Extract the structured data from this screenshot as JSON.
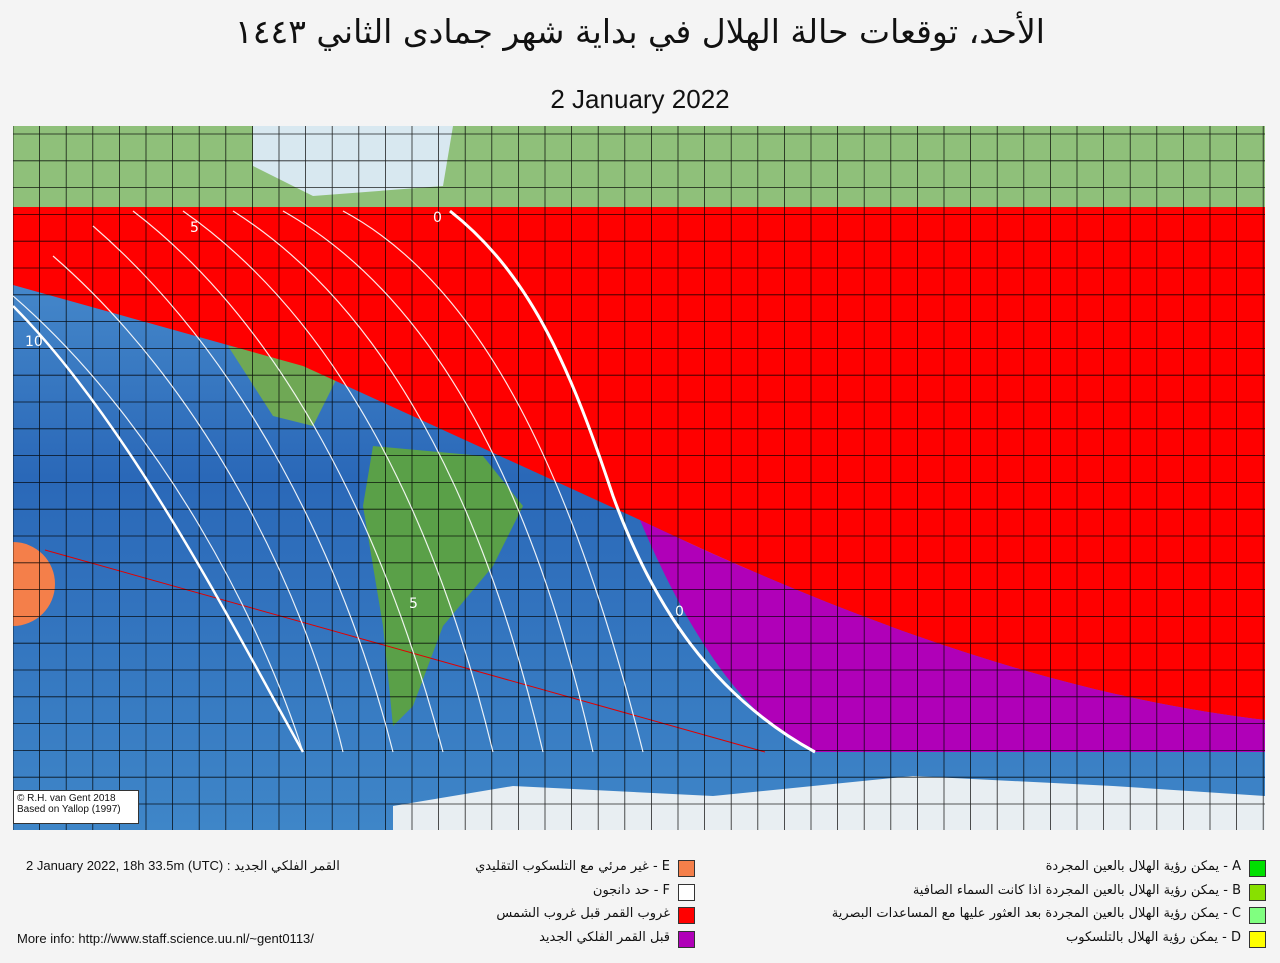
{
  "header": {
    "title": "الأحد، توقعات حالة الهلال في بداية شهر جمادى الثاني ١٤٤٣",
    "subtitle": "2 January 2022"
  },
  "map": {
    "contour_labels": [
      "5",
      "0",
      "10",
      "5",
      "0"
    ],
    "credits": [
      "© R.H. van Gent 2018",
      "Based on Yallop (1997)"
    ]
  },
  "footer": {
    "new_moon": "2 January 2022, 18h 33.5m (UTC) : القمر الفلكي الجديد",
    "more_info": "More info: http://www.staff.science.uu.nl/~gent0113/"
  },
  "legend_left": [
    {
      "text": "E - غير مرئي مع التلسكوب التقليدي",
      "color": "#f47f4a"
    },
    {
      "text": "F - حد دانجون",
      "color": "#ffffff"
    },
    {
      "text": "غروب القمر قبل غروب الشمس",
      "color": "#ff0000"
    },
    {
      "text": "قبل القمر  الفلكي الجديد",
      "color": "#b000b8"
    }
  ],
  "legend_right": [
    {
      "text": "A - يمكن رؤية الهلال بالعين المجردة",
      "color": "#00e000"
    },
    {
      "text": "B - يمكن رؤية الهلال بالعين المجردة اذا كانت السماء الصافية",
      "color": "#88e000"
    },
    {
      "text": "C - يمكن رؤية الهلال بالعين المجردة بعد العثور عليها مع المساعدات البصرية",
      "color": "#80ff80"
    },
    {
      "text": "D - يمكن رؤية الهلال بالتلسكوب",
      "color": "#ffff00"
    }
  ]
}
